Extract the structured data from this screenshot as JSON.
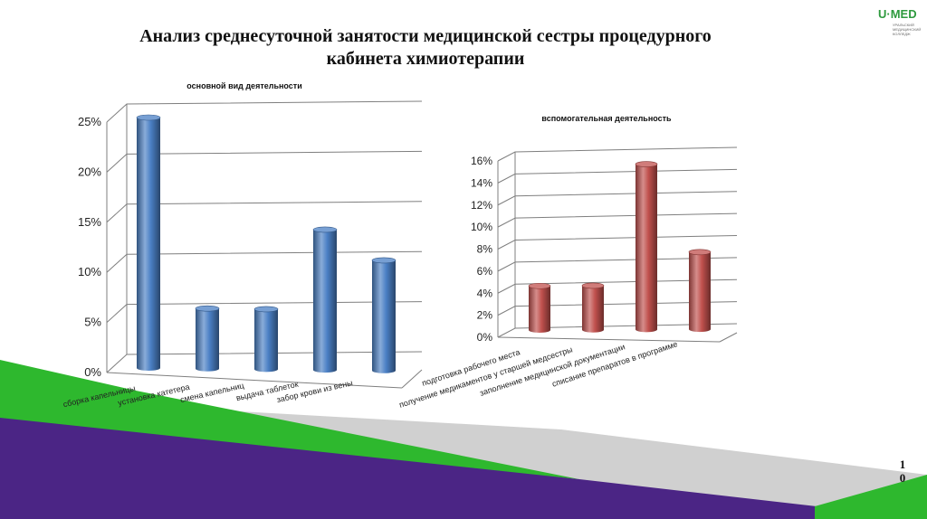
{
  "slide": {
    "title_line1": "Анализ среднесуточной занятости медицинской сестры процедурного",
    "title_line2": "кабинета химиотерапии",
    "logo_text": "U·MED",
    "logo_sub1": "УРАЛЬСКИЙ",
    "logo_sub2": "МЕДИЦИНСКИЙ",
    "logo_sub3": "КОЛЛЕДЖ",
    "page_line1": "1",
    "page_line2": "0"
  },
  "chart_data": [
    {
      "type": "bar",
      "title": "основной вид деятельности",
      "categories": [
        "сборка капельницы",
        "установка катетера",
        "смена капельниц",
        "выдача таблеток",
        "забор крови из вены"
      ],
      "values": [
        25,
        6,
        6,
        14,
        11
      ],
      "unit": "%",
      "ylim": [
        0,
        25
      ],
      "ticks": [
        "0%",
        "5%",
        "10%",
        "15%",
        "20%",
        "25%"
      ],
      "grid": true,
      "color": "#4a7fc4"
    },
    {
      "type": "bar",
      "title": "вспомогательная деятельность",
      "categories": [
        "подготовка рабочего места",
        "получение медикаментов у старшей медсестры",
        "заполнение медицинской документации",
        "списание препаратов в программе"
      ],
      "values": [
        4,
        4,
        15,
        7
      ],
      "unit": "%",
      "ylim": [
        0,
        16
      ],
      "ticks": [
        "0%",
        "2%",
        "4%",
        "6%",
        "8%",
        "10%",
        "12%",
        "14%",
        "16%"
      ],
      "grid": true,
      "color": "#c0504d"
    }
  ]
}
